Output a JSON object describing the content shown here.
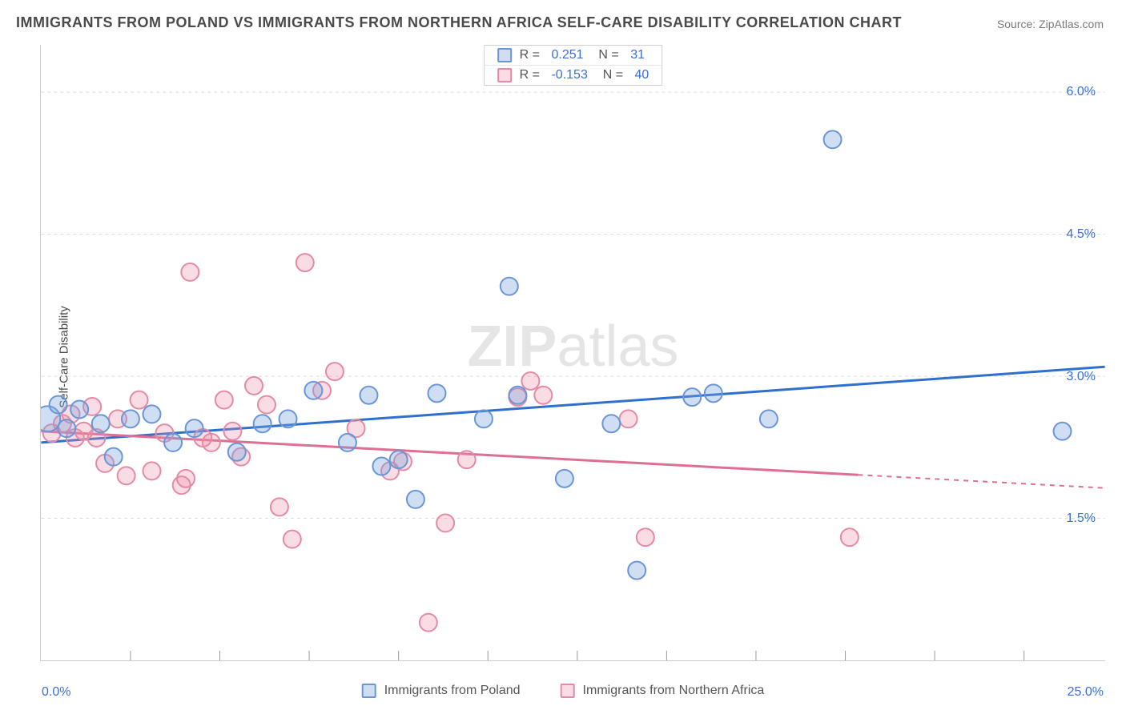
{
  "title": "IMMIGRANTS FROM POLAND VS IMMIGRANTS FROM NORTHERN AFRICA SELF-CARE DISABILITY CORRELATION CHART",
  "source": "Source: ZipAtlas.com",
  "ylabel": "Self-Care Disability",
  "watermark_bold": "ZIP",
  "watermark_light": "atlas",
  "chart": {
    "type": "scatter",
    "background_color": "#ffffff",
    "grid_color": "#dcdcdc",
    "xlim": [
      0,
      25
    ],
    "ylim": [
      0,
      6.5
    ],
    "x_corner_left": "0.0%",
    "x_corner_right": "25.0%",
    "y_ticks": [
      1.5,
      3.0,
      4.5,
      6.0
    ],
    "y_tick_labels": [
      "1.5%",
      "3.0%",
      "4.5%",
      "6.0%"
    ],
    "x_minor_ticks": [
      2.1,
      4.2,
      6.3,
      8.4,
      10.5,
      12.6,
      14.7,
      16.8,
      18.9,
      21.0,
      23.1
    ],
    "marker_radius": 11,
    "marker_stroke_width": 2,
    "trend_stroke_width": 3,
    "colors": {
      "blue_fill": "rgba(120,160,220,0.35)",
      "blue_stroke": "#6a96d6",
      "blue_line": "#2f6fd0",
      "pink_fill": "rgba(235,140,165,0.30)",
      "pink_stroke": "#e58aa5",
      "pink_line": "#df6f92",
      "axis_text": "#3b6fd6"
    },
    "series": [
      {
        "name": "Immigrants from Poland",
        "color_key": "blue",
        "stats": {
          "R": "0.251",
          "N": "31"
        },
        "trend": {
          "x1": 0,
          "y1": 2.3,
          "x2": 25,
          "y2": 3.1,
          "dash_from_x": null
        },
        "points": [
          [
            0.15,
            2.55,
            16
          ],
          [
            0.4,
            2.7
          ],
          [
            0.6,
            2.45
          ],
          [
            0.9,
            2.65
          ],
          [
            1.4,
            2.5
          ],
          [
            1.7,
            2.15
          ],
          [
            2.1,
            2.55
          ],
          [
            2.6,
            2.6
          ],
          [
            3.1,
            2.3
          ],
          [
            3.6,
            2.45
          ],
          [
            4.6,
            2.2
          ],
          [
            5.2,
            2.5
          ],
          [
            5.8,
            2.55
          ],
          [
            6.4,
            2.85
          ],
          [
            7.2,
            2.3
          ],
          [
            7.7,
            2.8
          ],
          [
            8.0,
            2.05
          ],
          [
            8.4,
            2.12
          ],
          [
            8.8,
            1.7
          ],
          [
            9.3,
            2.82
          ],
          [
            10.4,
            2.55
          ],
          [
            11.0,
            3.95
          ],
          [
            11.2,
            2.8
          ],
          [
            12.3,
            1.92
          ],
          [
            13.4,
            2.5
          ],
          [
            14.0,
            0.95
          ],
          [
            15.3,
            2.78
          ],
          [
            15.8,
            2.82
          ],
          [
            17.1,
            2.55
          ],
          [
            18.6,
            5.5
          ],
          [
            24.0,
            2.42
          ]
        ]
      },
      {
        "name": "Immigrants from Northern Africa",
        "color_key": "pink",
        "stats": {
          "R": "-0.153",
          "N": "40"
        },
        "trend": {
          "x1": 0,
          "y1": 2.42,
          "x2": 25,
          "y2": 1.82,
          "dash_from_x": 19.2
        },
        "points": [
          [
            0.25,
            2.4
          ],
          [
            0.5,
            2.5
          ],
          [
            0.7,
            2.6
          ],
          [
            0.8,
            2.35
          ],
          [
            1.0,
            2.42
          ],
          [
            1.2,
            2.68
          ],
          [
            1.3,
            2.35
          ],
          [
            1.5,
            2.08
          ],
          [
            1.8,
            2.55
          ],
          [
            2.0,
            1.95
          ],
          [
            2.3,
            2.75
          ],
          [
            2.6,
            2.0
          ],
          [
            2.9,
            2.4
          ],
          [
            3.3,
            1.85
          ],
          [
            3.4,
            1.92
          ],
          [
            3.5,
            4.1
          ],
          [
            3.8,
            2.35
          ],
          [
            4.0,
            2.3
          ],
          [
            4.3,
            2.75
          ],
          [
            4.5,
            2.42
          ],
          [
            4.7,
            2.15
          ],
          [
            5.0,
            2.9
          ],
          [
            5.3,
            2.7
          ],
          [
            5.6,
            1.62
          ],
          [
            5.9,
            1.28
          ],
          [
            6.2,
            4.2
          ],
          [
            6.6,
            2.85
          ],
          [
            6.9,
            3.05
          ],
          [
            7.4,
            2.45
          ],
          [
            8.2,
            2.0
          ],
          [
            8.5,
            2.1
          ],
          [
            9.1,
            0.4
          ],
          [
            9.5,
            1.45
          ],
          [
            10.0,
            2.12
          ],
          [
            11.2,
            2.78
          ],
          [
            11.5,
            2.95
          ],
          [
            11.8,
            2.8
          ],
          [
            13.8,
            2.55
          ],
          [
            14.2,
            1.3
          ],
          [
            19.0,
            1.3
          ]
        ]
      }
    ]
  },
  "legend": [
    {
      "label": "Immigrants from Poland",
      "swatch": "sw-blue"
    },
    {
      "label": "Immigrants from Northern Africa",
      "swatch": "sw-pink"
    }
  ]
}
